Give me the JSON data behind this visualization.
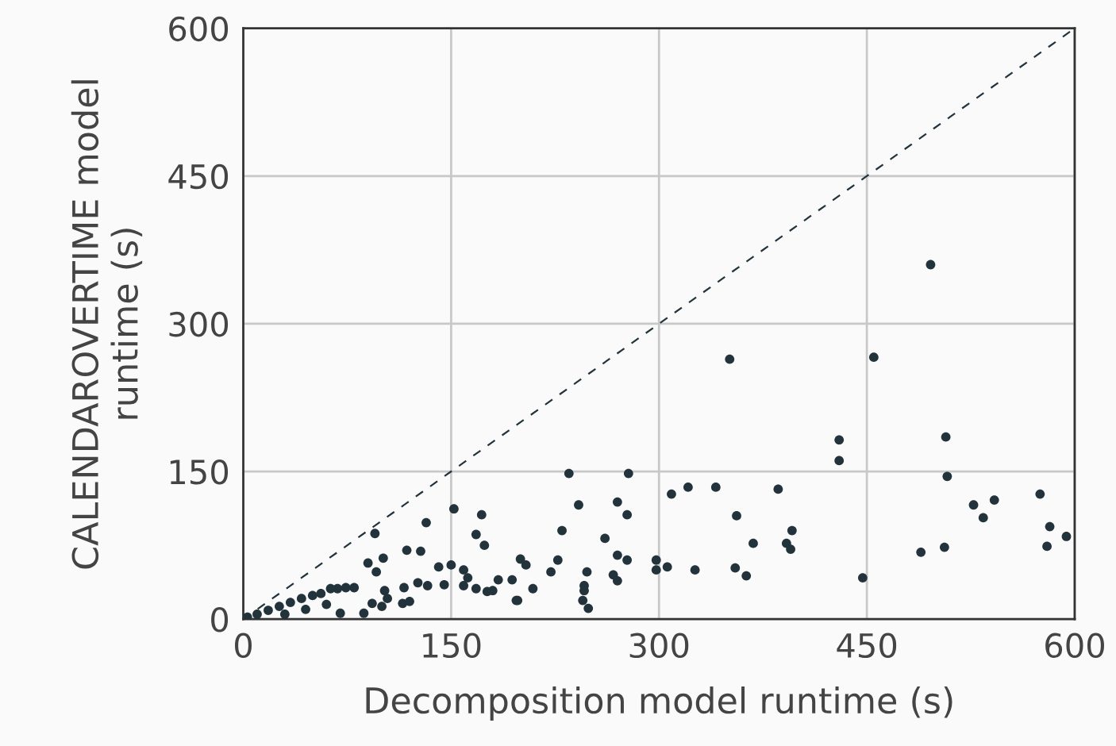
{
  "chart_data": {
    "type": "scatter",
    "xlabel": "Decomposition model runtime (s)",
    "ylabel": "CALENDAROVERTIME model\nruntime (s)",
    "xlim": [
      0,
      600
    ],
    "ylim": [
      0,
      600
    ],
    "xticks": [
      0,
      150,
      300,
      450,
      600
    ],
    "yticks": [
      0,
      150,
      300,
      450,
      600
    ],
    "grid": true,
    "series": [
      {
        "color": "#22333b",
        "marker": "circle",
        "x": [
          496,
          455,
          430,
          430,
          507,
          508,
          527,
          542,
          534,
          575,
          582,
          580,
          594,
          489,
          506,
          447,
          386,
          396,
          392,
          395,
          351,
          235,
          278,
          309,
          321,
          341,
          356,
          368,
          242,
          270,
          277,
          230,
          261,
          200,
          204,
          227,
          222,
          194,
          209,
          197,
          248,
          270,
          277,
          267,
          270,
          246,
          246,
          245,
          249,
          298,
          298,
          306,
          326,
          355,
          363,
          152,
          172,
          132,
          95,
          168,
          174,
          118,
          128,
          101,
          90,
          141,
          150,
          96,
          159,
          162,
          184,
          126,
          133,
          145,
          159,
          168,
          176,
          180,
          198,
          116,
          102,
          104,
          100,
          87,
          93,
          120,
          115,
          70,
          80,
          74,
          68,
          63,
          3,
          10,
          18,
          26,
          34,
          42,
          50,
          56,
          30,
          45,
          60
        ],
        "values": [
          360,
          266,
          182,
          161,
          185,
          145,
          116,
          121,
          103,
          127,
          94,
          74,
          84,
          68,
          73,
          42,
          132,
          90,
          77,
          71,
          264,
          148,
          148,
          127,
          134,
          134,
          105,
          77,
          116,
          119,
          106,
          90,
          82,
          61,
          55,
          60,
          48,
          40,
          31,
          19,
          48,
          65,
          60,
          45,
          39,
          34,
          29,
          19,
          11,
          60,
          50,
          53,
          50,
          52,
          44,
          112,
          106,
          98,
          87,
          86,
          75,
          70,
          69,
          62,
          57,
          53,
          55,
          48,
          50,
          42,
          40,
          37,
          34,
          35,
          34,
          31,
          28,
          29,
          19,
          32,
          29,
          21,
          13,
          6,
          16,
          18,
          16,
          6,
          32,
          32,
          31,
          31,
          2,
          5,
          9,
          13,
          17,
          21,
          24,
          26,
          5,
          10,
          15
        ]
      },
      {
        "type": "line",
        "color": "#22333b",
        "line_style": "dashed",
        "marker": "none",
        "x": [
          0,
          600
        ],
        "values": [
          0,
          600
        ]
      }
    ]
  }
}
